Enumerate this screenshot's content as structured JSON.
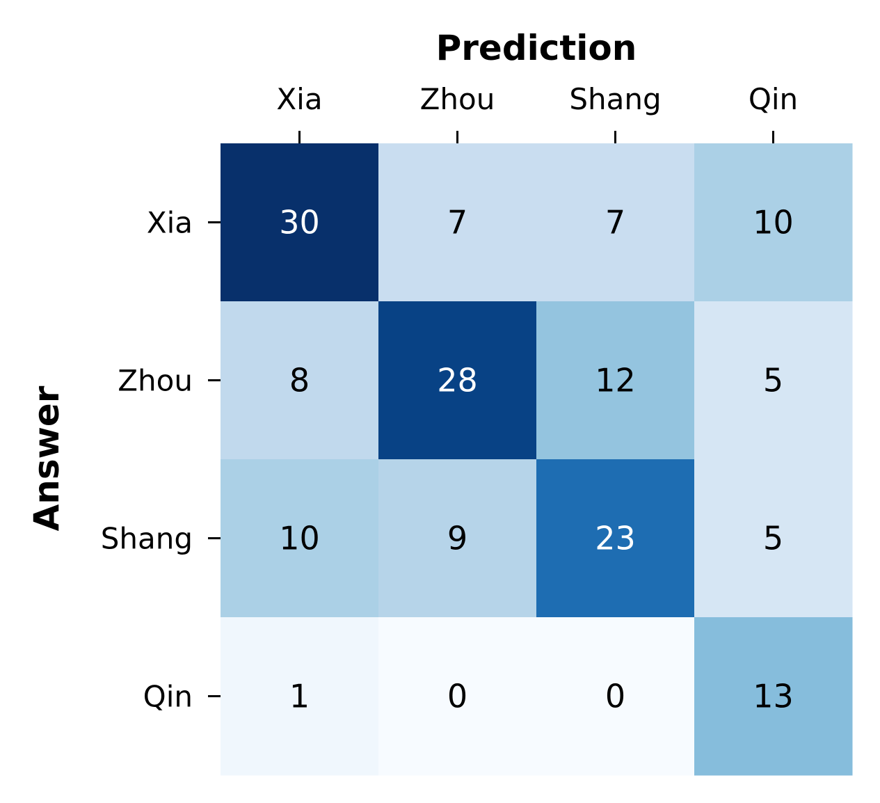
{
  "chart_data": {
    "type": "heatmap",
    "title": "",
    "xlabel": "Prediction",
    "ylabel": "Answer",
    "x_categories": [
      "Xia",
      "Zhou",
      "Shang",
      "Qin"
    ],
    "y_categories": [
      "Xia",
      "Zhou",
      "Shang",
      "Qin"
    ],
    "values": [
      [
        30,
        7,
        7,
        10
      ],
      [
        8,
        28,
        12,
        5
      ],
      [
        10,
        9,
        23,
        5
      ],
      [
        1,
        0,
        0,
        13
      ]
    ],
    "colormap": "Blues",
    "colorbar": false,
    "annotations": true,
    "x_axis_position": "top",
    "grid": false
  }
}
